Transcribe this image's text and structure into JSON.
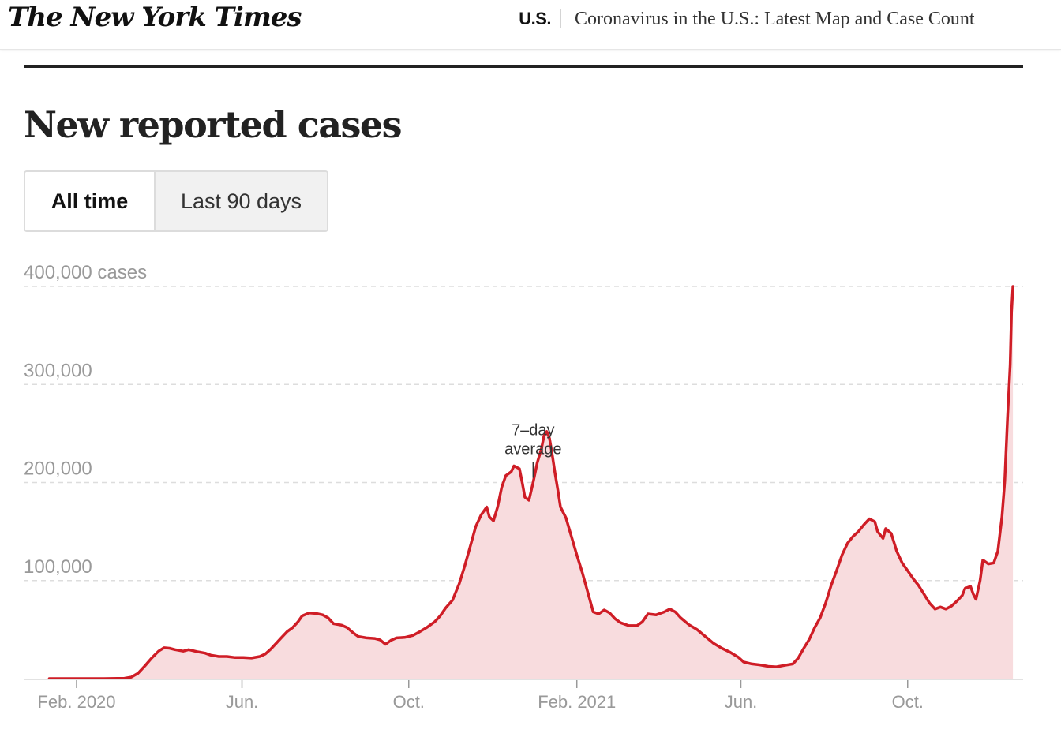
{
  "header": {
    "logo": "The New York Times",
    "section": "U.S.",
    "headline": "Coronavirus in the U.S.: Latest Map and Case Count"
  },
  "page_title": "New reported cases",
  "toggle": {
    "options": [
      {
        "label": "All time",
        "active": true
      },
      {
        "label": "Last 90 days",
        "active": false
      }
    ]
  },
  "colors": {
    "line": "#cf1d26",
    "area": "#f8dcde",
    "grid": "#dddddd",
    "axis_text": "#999999"
  },
  "chart_data": {
    "type": "area",
    "title": "New reported cases",
    "xlabel": "",
    "ylabel": "cases",
    "series_name": "7-day average",
    "annotation": {
      "text_line1": "7–day",
      "text_line2": "average",
      "at_day": 334
    },
    "ylim": [
      0,
      400000
    ],
    "yticks": [
      {
        "value": 100000,
        "label": "100,000"
      },
      {
        "value": 200000,
        "label": "200,000"
      },
      {
        "value": 300000,
        "label": "300,000"
      },
      {
        "value": 400000,
        "label": "400,000 cases"
      }
    ],
    "xdomain_days": [
      -20,
      685
    ],
    "x_unit": "days since 2020-02-01",
    "xticks": [
      {
        "day": 0,
        "label": "Feb. 2020"
      },
      {
        "day": 121,
        "label": "Jun."
      },
      {
        "day": 243,
        "label": "Oct."
      },
      {
        "day": 366,
        "label": "Feb. 2021"
      },
      {
        "day": 486,
        "label": "Jun."
      },
      {
        "day": 608,
        "label": "Oct."
      }
    ],
    "grid": true,
    "points": [
      [
        -20,
        0
      ],
      [
        0,
        0
      ],
      [
        20,
        0
      ],
      [
        35,
        300
      ],
      [
        40,
        1500
      ],
      [
        45,
        5500
      ],
      [
        50,
        13000
      ],
      [
        55,
        21000
      ],
      [
        60,
        28000
      ],
      [
        64,
        31500
      ],
      [
        68,
        31000
      ],
      [
        72,
        29500
      ],
      [
        78,
        28000
      ],
      [
        82,
        29500
      ],
      [
        88,
        27500
      ],
      [
        94,
        26000
      ],
      [
        98,
        24000
      ],
      [
        104,
        22500
      ],
      [
        110,
        22500
      ],
      [
        116,
        21500
      ],
      [
        122,
        21500
      ],
      [
        128,
        21000
      ],
      [
        134,
        22500
      ],
      [
        138,
        25000
      ],
      [
        142,
        30000
      ],
      [
        146,
        36000
      ],
      [
        150,
        42000
      ],
      [
        154,
        48000
      ],
      [
        158,
        52000
      ],
      [
        162,
        58000
      ],
      [
        165,
        64000
      ],
      [
        170,
        67000
      ],
      [
        175,
        66500
      ],
      [
        180,
        65000
      ],
      [
        184,
        62000
      ],
      [
        188,
        56000
      ],
      [
        194,
        54500
      ],
      [
        198,
        52000
      ],
      [
        202,
        47000
      ],
      [
        206,
        43000
      ],
      [
        212,
        41500
      ],
      [
        218,
        41000
      ],
      [
        222,
        39500
      ],
      [
        226,
        35000
      ],
      [
        230,
        39000
      ],
      [
        234,
        41500
      ],
      [
        240,
        42000
      ],
      [
        246,
        44000
      ],
      [
        250,
        47000
      ],
      [
        256,
        52000
      ],
      [
        262,
        58000
      ],
      [
        266,
        64000
      ],
      [
        270,
        72000
      ],
      [
        275,
        80000
      ],
      [
        280,
        97000
      ],
      [
        284,
        115000
      ],
      [
        288,
        135000
      ],
      [
        292,
        155000
      ],
      [
        296,
        167000
      ],
      [
        300,
        175000
      ],
      [
        302,
        165000
      ],
      [
        305,
        161000
      ],
      [
        308,
        175000
      ],
      [
        311,
        195000
      ],
      [
        314,
        207000
      ],
      [
        318,
        211000
      ],
      [
        320,
        217000
      ],
      [
        324,
        214000
      ],
      [
        326,
        200000
      ],
      [
        328,
        185000
      ],
      [
        331,
        182000
      ],
      [
        334,
        200000
      ],
      [
        337,
        220000
      ],
      [
        340,
        234000
      ],
      [
        342,
        248000
      ],
      [
        344,
        252000
      ],
      [
        346,
        245000
      ],
      [
        348,
        228000
      ],
      [
        350,
        210000
      ],
      [
        352,
        193000
      ],
      [
        354,
        175000
      ],
      [
        358,
        164000
      ],
      [
        362,
        145000
      ],
      [
        366,
        126000
      ],
      [
        370,
        108000
      ],
      [
        374,
        88000
      ],
      [
        378,
        68000
      ],
      [
        382,
        66000
      ],
      [
        386,
        70000
      ],
      [
        390,
        67000
      ],
      [
        394,
        61000
      ],
      [
        398,
        57000
      ],
      [
        404,
        54000
      ],
      [
        410,
        54000
      ],
      [
        414,
        58000
      ],
      [
        418,
        66000
      ],
      [
        424,
        65000
      ],
      [
        430,
        68000
      ],
      [
        434,
        71000
      ],
      [
        438,
        68000
      ],
      [
        442,
        62000
      ],
      [
        448,
        55000
      ],
      [
        454,
        50000
      ],
      [
        460,
        43000
      ],
      [
        466,
        36000
      ],
      [
        472,
        31000
      ],
      [
        478,
        27000
      ],
      [
        484,
        22000
      ],
      [
        488,
        17000
      ],
      [
        494,
        15000
      ],
      [
        500,
        14000
      ],
      [
        506,
        12500
      ],
      [
        512,
        12000
      ],
      [
        518,
        13500
      ],
      [
        524,
        15000
      ],
      [
        528,
        21000
      ],
      [
        532,
        31000
      ],
      [
        536,
        40000
      ],
      [
        540,
        52000
      ],
      [
        544,
        62000
      ],
      [
        548,
        77000
      ],
      [
        552,
        95000
      ],
      [
        556,
        110000
      ],
      [
        560,
        126000
      ],
      [
        564,
        138000
      ],
      [
        568,
        145000
      ],
      [
        572,
        150000
      ],
      [
        576,
        157000
      ],
      [
        580,
        163000
      ],
      [
        584,
        160000
      ],
      [
        586,
        150000
      ],
      [
        590,
        143000
      ],
      [
        592,
        153000
      ],
      [
        596,
        148000
      ],
      [
        600,
        130000
      ],
      [
        604,
        118000
      ],
      [
        608,
        110000
      ],
      [
        612,
        102000
      ],
      [
        616,
        95000
      ],
      [
        620,
        86000
      ],
      [
        624,
        77000
      ],
      [
        628,
        71000
      ],
      [
        632,
        73000
      ],
      [
        636,
        71000
      ],
      [
        640,
        74000
      ],
      [
        644,
        79000
      ],
      [
        648,
        85000
      ],
      [
        650,
        92000
      ],
      [
        654,
        94000
      ],
      [
        656,
        86000
      ],
      [
        658,
        81000
      ],
      [
        661,
        100000
      ],
      [
        663,
        121000
      ],
      [
        667,
        117000
      ],
      [
        671,
        118000
      ],
      [
        674,
        130000
      ],
      [
        677,
        165000
      ],
      [
        679,
        201000
      ],
      [
        681,
        265000
      ],
      [
        683,
        320000
      ],
      [
        684,
        374000
      ],
      [
        685,
        400000
      ]
    ]
  }
}
